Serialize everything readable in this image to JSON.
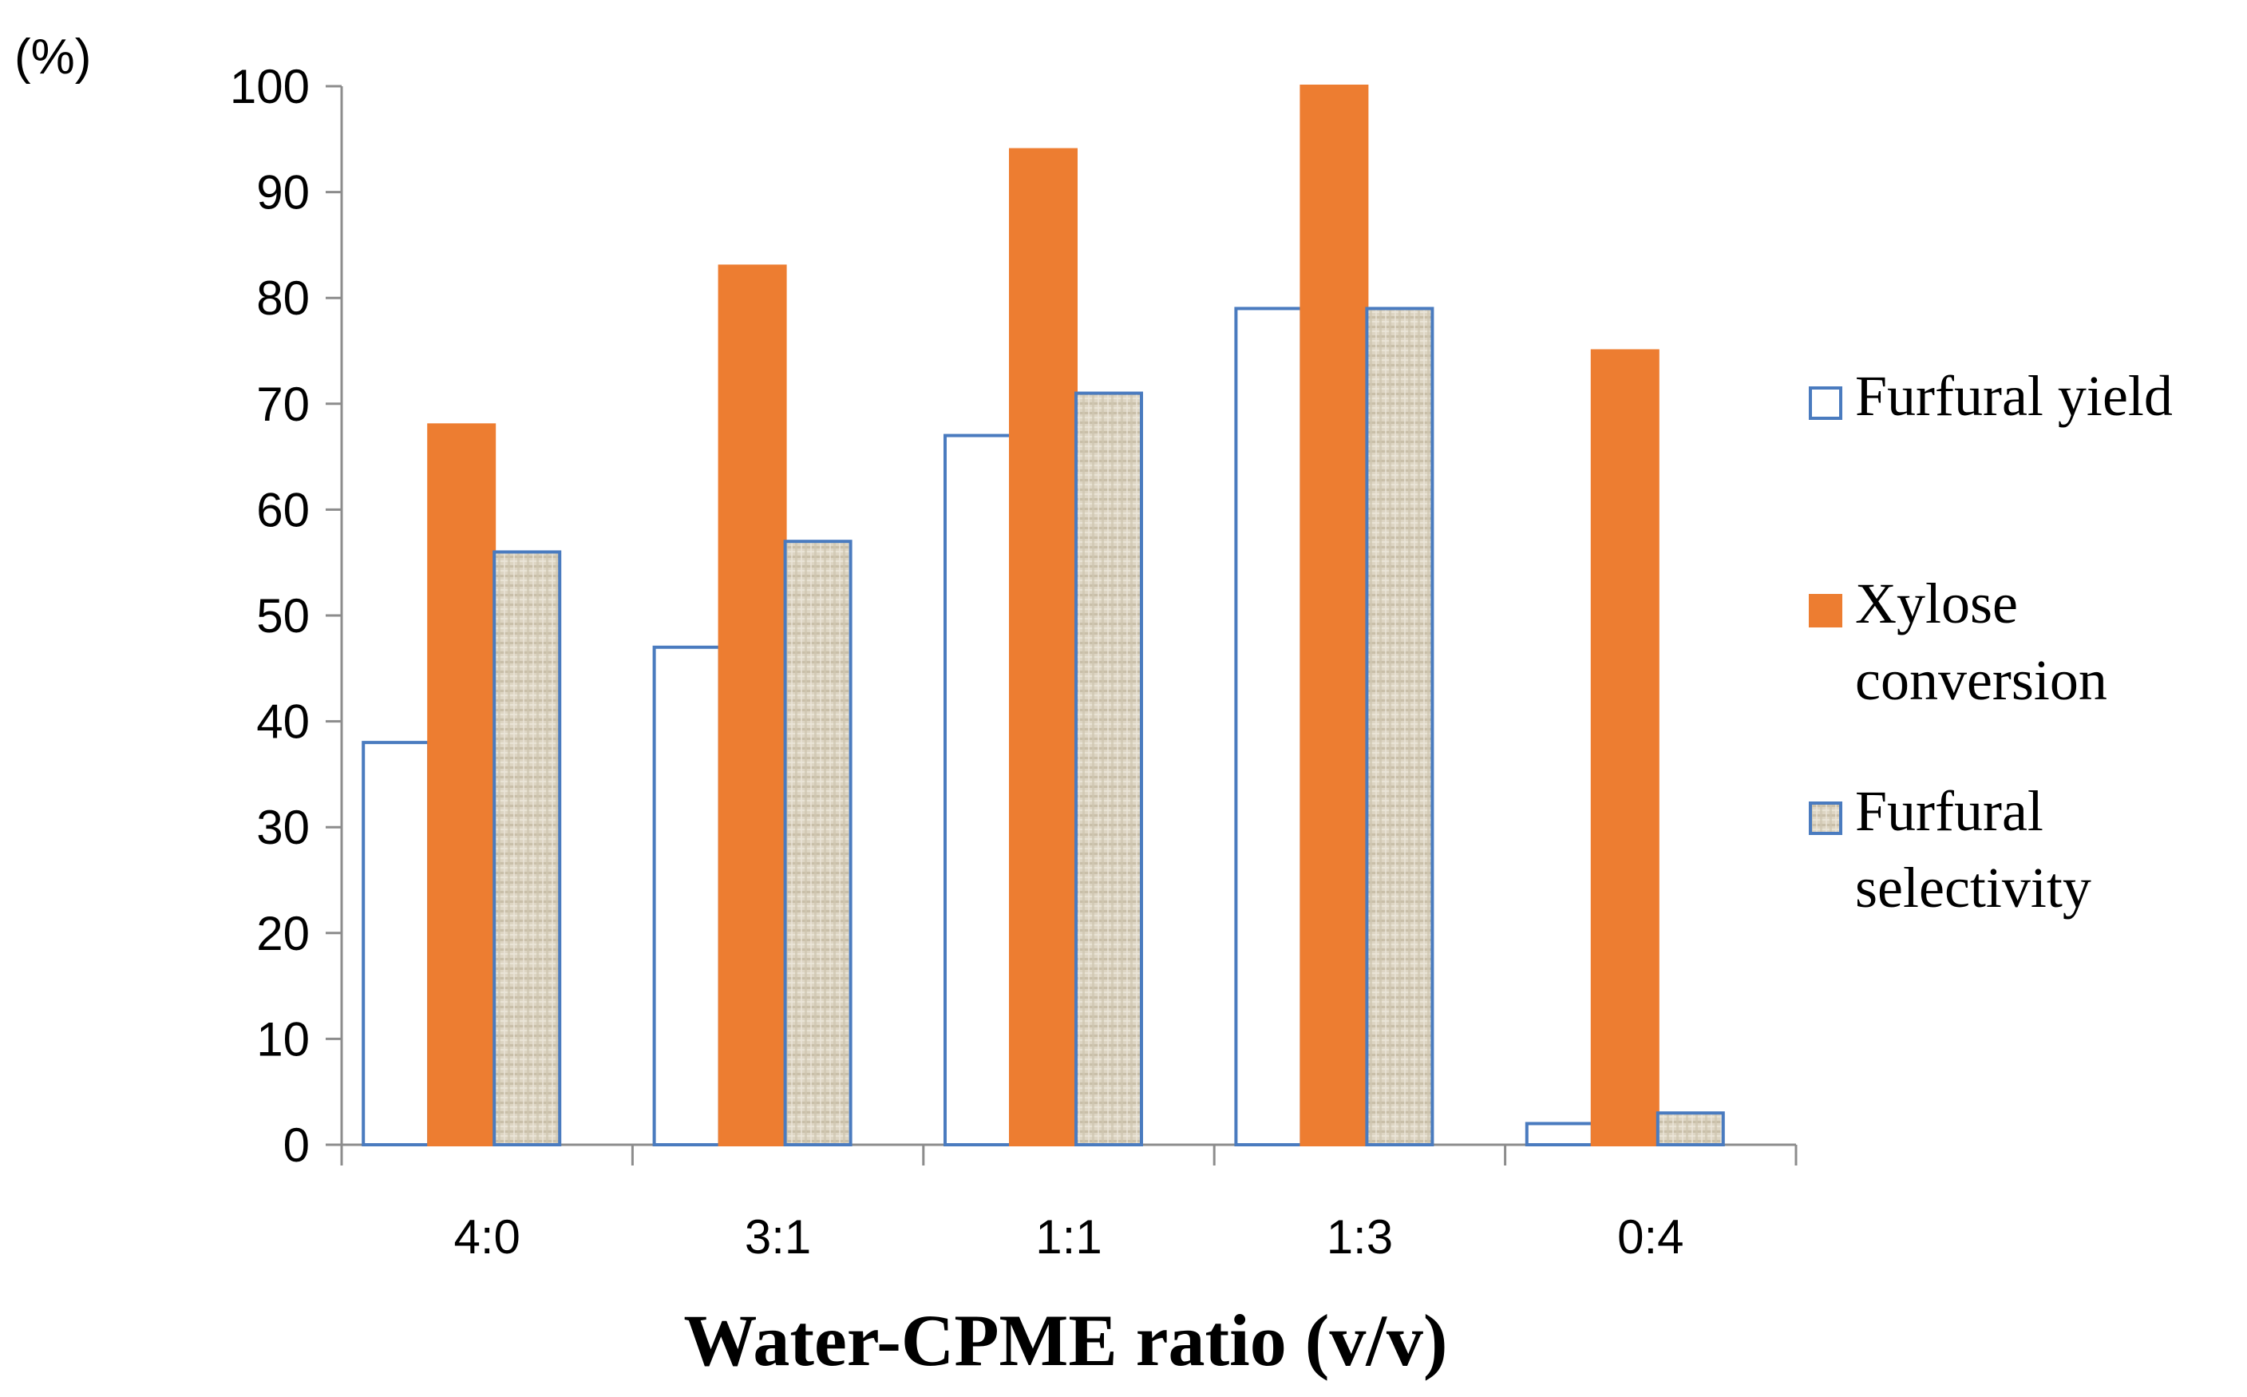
{
  "chart_data": {
    "type": "bar",
    "title": "",
    "ylabel": "(%)",
    "xlabel": "Water-CPME ratio (v/v)",
    "ylim": [
      0,
      100
    ],
    "yticks": [
      0,
      10,
      20,
      30,
      40,
      50,
      60,
      70,
      80,
      90,
      100
    ],
    "grid": false,
    "legend_position": "right",
    "categories": [
      "4:0",
      "3:1",
      "1:1",
      "1:3",
      "0:4"
    ],
    "series": [
      {
        "name": "Furfural yield",
        "legend_lines": [
          "Furfural yield"
        ],
        "values": [
          38,
          47,
          67,
          79,
          2
        ],
        "fill": "#ffffff",
        "stroke": "#4a7bbf",
        "pattern": false
      },
      {
        "name": "Xylose conversion",
        "legend_lines": [
          "Xylose",
          "conversion"
        ],
        "values": [
          68,
          83,
          94,
          100,
          75
        ],
        "fill": "#ed7d31",
        "stroke": "#ed7d31",
        "pattern": false
      },
      {
        "name": "Furfural selectivity",
        "legend_lines": [
          "Furfural",
          "selectivity"
        ],
        "values": [
          56,
          57,
          71,
          79,
          3
        ],
        "fill": "#ddd5c3",
        "stroke": "#4a7bbf",
        "pattern": true
      }
    ]
  }
}
